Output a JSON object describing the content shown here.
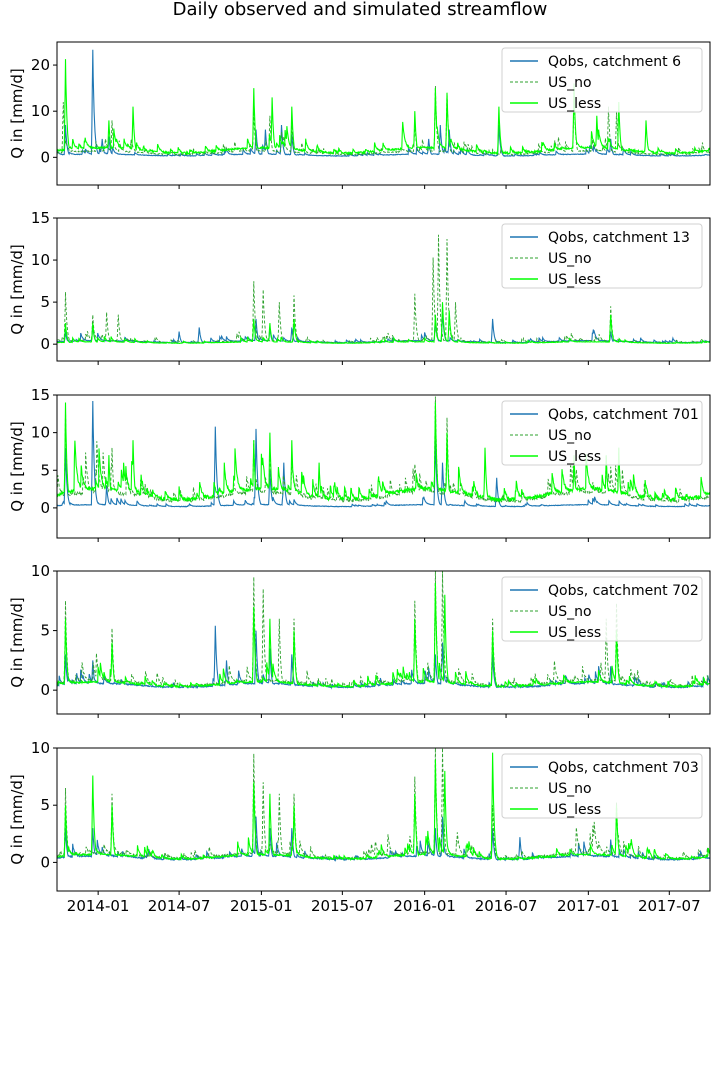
{
  "title": "Daily observed and simulated streamflow",
  "chart_data": [
    {
      "type": "line",
      "catchment": "6",
      "ylabel": "Q in [mm/d]",
      "ylim": [
        -6,
        25
      ],
      "yticks": [
        0,
        10,
        20
      ],
      "xlim": [
        "2013-10-01",
        "2017-09-30"
      ],
      "legend_position": "top-right",
      "series": [
        {
          "name": "Qobs, catchment 6",
          "color": "#1f77b4",
          "style": "solid",
          "baseline": 0.5,
          "scale": 1.0,
          "peaks": [
            [
              "2013-10-20",
              7
            ],
            [
              "2013-12-20",
              23.3
            ],
            [
              "2014-01-10",
              4
            ],
            [
              "2014-01-25",
              4.5
            ],
            [
              "2014-12-20",
              6
            ],
            [
              "2015-01-10",
              6
            ],
            [
              "2015-02-15",
              7
            ],
            [
              "2015-03-10",
              5
            ],
            [
              "2016-01-10",
              4
            ],
            [
              "2016-02-05",
              7
            ],
            [
              "2016-02-25",
              6
            ],
            [
              "2016-06-15",
              7
            ],
            [
              "2017-02-20",
              4
            ]
          ]
        },
        {
          "name": "US_no",
          "color": "#2ca02c",
          "style": "dashed",
          "baseline": 1.0,
          "scale": 1.0,
          "peaks": [
            [
              "2013-10-15",
              12
            ],
            [
              "2014-02-01",
              8
            ],
            [
              "2014-12-15",
              10
            ],
            [
              "2015-01-20",
              9
            ],
            [
              "2015-03-10",
              7
            ],
            [
              "2015-12-10",
              8
            ],
            [
              "2016-01-25",
              15.5
            ],
            [
              "2016-02-20",
              14
            ],
            [
              "2016-11-30",
              14
            ],
            [
              "2017-02-15",
              11
            ],
            [
              "2017-03-05",
              10
            ]
          ]
        },
        {
          "name": "US_less",
          "color": "#00ff00",
          "style": "solid",
          "baseline": 1.5,
          "scale": 1.0,
          "peaks": [
            [
              "2013-10-20",
              21.3
            ],
            [
              "2014-01-25",
              8
            ],
            [
              "2014-03-20",
              11
            ],
            [
              "2014-12-15",
              15
            ],
            [
              "2015-01-25",
              13
            ],
            [
              "2015-03-10",
              11
            ],
            [
              "2015-12-10",
              10
            ],
            [
              "2016-01-25",
              15
            ],
            [
              "2016-02-20",
              14
            ],
            [
              "2016-06-15",
              11
            ],
            [
              "2016-11-30",
              16
            ],
            [
              "2017-01-20",
              9
            ],
            [
              "2017-03-10",
              12
            ],
            [
              "2017-05-10",
              8
            ]
          ]
        }
      ]
    },
    {
      "type": "line",
      "catchment": "13",
      "ylabel": "Q in [mm/d]",
      "ylim": [
        -2,
        15
      ],
      "yticks": [
        0,
        5,
        10,
        15
      ],
      "xlim": [
        "2013-10-01",
        "2017-09-30"
      ],
      "legend_position": "top-right",
      "series": [
        {
          "name": "Qobs, catchment 13",
          "color": "#1f77b4",
          "style": "solid",
          "baseline": 0.3,
          "scale": 1.0,
          "peaks": [
            [
              "2013-10-20",
              1.5
            ],
            [
              "2013-12-20",
              2.3
            ],
            [
              "2014-07-01",
              1.5
            ],
            [
              "2014-08-15",
              2
            ],
            [
              "2014-12-20",
              3
            ],
            [
              "2015-01-20",
              2
            ],
            [
              "2015-03-10",
              2
            ],
            [
              "2016-01-25",
              3
            ],
            [
              "2016-02-10",
              4
            ],
            [
              "2016-06-01",
              3
            ],
            [
              "2017-02-20",
              1.5
            ]
          ]
        },
        {
          "name": "US_no",
          "color": "#2ca02c",
          "style": "dashed",
          "baseline": 0.3,
          "scale": 1.0,
          "peaks": [
            [
              "2013-10-20",
              6.2
            ],
            [
              "2013-12-20",
              3.5
            ],
            [
              "2014-01-20",
              3.8
            ],
            [
              "2014-02-15",
              3.5
            ],
            [
              "2014-12-15",
              7.5
            ],
            [
              "2015-01-05",
              6.5
            ],
            [
              "2015-02-10",
              5
            ],
            [
              "2015-03-15",
              5.8
            ],
            [
              "2015-12-10",
              6
            ],
            [
              "2016-01-20",
              10.3
            ],
            [
              "2016-02-01",
              13
            ],
            [
              "2016-02-20",
              12.5
            ],
            [
              "2016-03-10",
              5
            ],
            [
              "2017-02-20",
              4.5
            ]
          ]
        },
        {
          "name": "US_less",
          "color": "#00ff00",
          "style": "solid",
          "baseline": 0.2,
          "scale": 1.0,
          "peaks": [
            [
              "2013-10-20",
              2.5
            ],
            [
              "2013-12-20",
              2.5
            ],
            [
              "2014-12-15",
              3
            ],
            [
              "2015-01-20",
              2.5
            ],
            [
              "2015-03-15",
              3
            ],
            [
              "2016-01-25",
              3.5
            ],
            [
              "2016-02-10",
              5
            ],
            [
              "2016-02-25",
              4
            ],
            [
              "2017-02-20",
              3.5
            ]
          ]
        }
      ]
    },
    {
      "type": "line",
      "catchment": "701",
      "ylabel": "Q in [mm/d]",
      "ylim": [
        -4,
        15
      ],
      "yticks": [
        0,
        5,
        10,
        15
      ],
      "xlim": [
        "2013-10-01",
        "2017-09-30"
      ],
      "legend_position": "top-right",
      "series": [
        {
          "name": "Qobs, catchment 701",
          "color": "#1f77b4",
          "style": "solid",
          "baseline": 0.3,
          "scale": 1.0,
          "peaks": [
            [
              "2013-10-20",
              8
            ],
            [
              "2013-12-20",
              14.2
            ],
            [
              "2014-01-20",
              3
            ],
            [
              "2014-09-20",
              10.8
            ],
            [
              "2014-12-20",
              10.5
            ],
            [
              "2015-01-20",
              5
            ],
            [
              "2015-02-20",
              6
            ],
            [
              "2016-01-25",
              9
            ],
            [
              "2016-02-10",
              6
            ],
            [
              "2016-06-10",
              4
            ]
          ]
        },
        {
          "name": "US_no",
          "color": "#2ca02c",
          "style": "dashed",
          "baseline": 1.5,
          "scale": 1.0,
          "peaks": [
            [
              "2013-10-20",
              13
            ],
            [
              "2014-02-01",
              8
            ],
            [
              "2014-12-15",
              9
            ],
            [
              "2015-01-20",
              8
            ],
            [
              "2015-03-10",
              7
            ],
            [
              "2016-01-25",
              14.8
            ],
            [
              "2016-02-20",
              12
            ],
            [
              "2017-02-10",
              7
            ],
            [
              "2017-03-10",
              8
            ]
          ]
        },
        {
          "name": "US_less",
          "color": "#00ff00",
          "style": "solid",
          "baseline": 1.8,
          "scale": 1.0,
          "peaks": [
            [
              "2013-10-20",
              14
            ],
            [
              "2014-01-25",
              7
            ],
            [
              "2014-03-20",
              9
            ],
            [
              "2014-12-15",
              9
            ],
            [
              "2015-01-20",
              10
            ],
            [
              "2015-03-10",
              9
            ],
            [
              "2015-05-10",
              6
            ],
            [
              "2016-01-25",
              14
            ],
            [
              "2016-02-20",
              10
            ],
            [
              "2016-05-15",
              8
            ],
            [
              "2016-11-30",
              7
            ],
            [
              "2017-02-10",
              7
            ],
            [
              "2017-03-10",
              8
            ]
          ]
        }
      ]
    },
    {
      "type": "line",
      "catchment": "702",
      "ylabel": "Q in [mm/d]",
      "ylim": [
        -2,
        10
      ],
      "yticks": [
        0,
        5,
        10
      ],
      "xlim": [
        "2013-10-01",
        "2017-09-30"
      ],
      "legend_position": "top-right",
      "series": [
        {
          "name": "Qobs, catchment 702",
          "color": "#1f77b4",
          "style": "solid",
          "baseline": 0.4,
          "scale": 1.0,
          "peaks": [
            [
              "2013-10-20",
              3
            ],
            [
              "2013-12-20",
              2.5
            ],
            [
              "2014-09-20",
              5.4
            ],
            [
              "2014-10-15",
              2.5
            ],
            [
              "2014-12-20",
              5
            ],
            [
              "2015-01-20",
              3.5
            ],
            [
              "2015-03-10",
              3
            ],
            [
              "2016-01-25",
              3
            ],
            [
              "2016-02-10",
              4
            ],
            [
              "2016-06-01",
              3
            ],
            [
              "2017-02-20",
              2
            ]
          ]
        },
        {
          "name": "US_no",
          "color": "#2ca02c",
          "style": "dashed",
          "baseline": 0.6,
          "scale": 1.0,
          "peaks": [
            [
              "2013-10-20",
              7.5
            ],
            [
              "2014-02-01",
              5.2
            ],
            [
              "2014-12-15",
              9.5
            ],
            [
              "2015-01-05",
              8.5
            ],
            [
              "2015-02-10",
              6
            ],
            [
              "2015-03-15",
              6
            ],
            [
              "2015-12-10",
              7.5
            ],
            [
              "2016-01-25",
              10
            ],
            [
              "2016-02-10",
              10
            ],
            [
              "2016-06-01",
              6
            ],
            [
              "2017-02-10",
              6
            ],
            [
              "2017-03-05",
              7.3
            ]
          ]
        },
        {
          "name": "US_less",
          "color": "#00ff00",
          "style": "solid",
          "baseline": 0.5,
          "scale": 1.0,
          "peaks": [
            [
              "2013-10-20",
              6
            ],
            [
              "2014-02-01",
              4
            ],
            [
              "2014-12-15",
              7
            ],
            [
              "2015-01-20",
              6
            ],
            [
              "2015-03-15",
              5
            ],
            [
              "2015-12-10",
              6
            ],
            [
              "2016-01-25",
              9
            ],
            [
              "2016-02-15",
              8
            ],
            [
              "2016-06-01",
              5
            ],
            [
              "2017-03-05",
              5
            ]
          ]
        }
      ]
    },
    {
      "type": "line",
      "catchment": "703",
      "ylabel": "Q in [mm/d]",
      "ylim": [
        -2.5,
        10
      ],
      "yticks": [
        0,
        5,
        10
      ],
      "xlim": [
        "2013-10-01",
        "2017-09-30"
      ],
      "legend_position": "top-right",
      "series": [
        {
          "name": "Qobs, catchment 703",
          "color": "#1f77b4",
          "style": "solid",
          "baseline": 0.4,
          "scale": 1.0,
          "peaks": [
            [
              "2013-10-20",
              3
            ],
            [
              "2013-12-20",
              3
            ],
            [
              "2014-12-20",
              4
            ],
            [
              "2015-01-20",
              3
            ],
            [
              "2015-03-10",
              3
            ],
            [
              "2016-01-25",
              3
            ],
            [
              "2016-02-10",
              4
            ],
            [
              "2016-06-01",
              3
            ],
            [
              "2016-08-01",
              2.2
            ],
            [
              "2017-02-20",
              2
            ]
          ]
        },
        {
          "name": "US_no",
          "color": "#2ca02c",
          "style": "dashed",
          "baseline": 0.6,
          "scale": 1.0,
          "peaks": [
            [
              "2013-10-20",
              6.5
            ],
            [
              "2014-02-01",
              6
            ],
            [
              "2014-12-15",
              9.5
            ],
            [
              "2015-01-05",
              7
            ],
            [
              "2015-02-10",
              6
            ],
            [
              "2015-03-15",
              6
            ],
            [
              "2015-12-10",
              7.5
            ],
            [
              "2016-01-25",
              10
            ],
            [
              "2016-02-10",
              10
            ],
            [
              "2016-06-01",
              5
            ],
            [
              "2017-03-05",
              5.3
            ]
          ]
        },
        {
          "name": "US_less",
          "color": "#00ff00",
          "style": "solid",
          "baseline": 0.5,
          "scale": 1.0,
          "peaks": [
            [
              "2013-10-20",
              5
            ],
            [
              "2013-12-20",
              7.6
            ],
            [
              "2014-02-01",
              5
            ],
            [
              "2014-12-15",
              7
            ],
            [
              "2015-01-20",
              6
            ],
            [
              "2015-03-15",
              5
            ],
            [
              "2015-12-10",
              6
            ],
            [
              "2016-01-25",
              9
            ],
            [
              "2016-02-15",
              8
            ],
            [
              "2016-06-01",
              9.6
            ],
            [
              "2017-03-05",
              5
            ]
          ]
        }
      ]
    }
  ],
  "xticks": [
    "2014-01",
    "2014-07",
    "2015-01",
    "2015-07",
    "2016-01",
    "2016-07",
    "2017-01",
    "2017-07"
  ]
}
